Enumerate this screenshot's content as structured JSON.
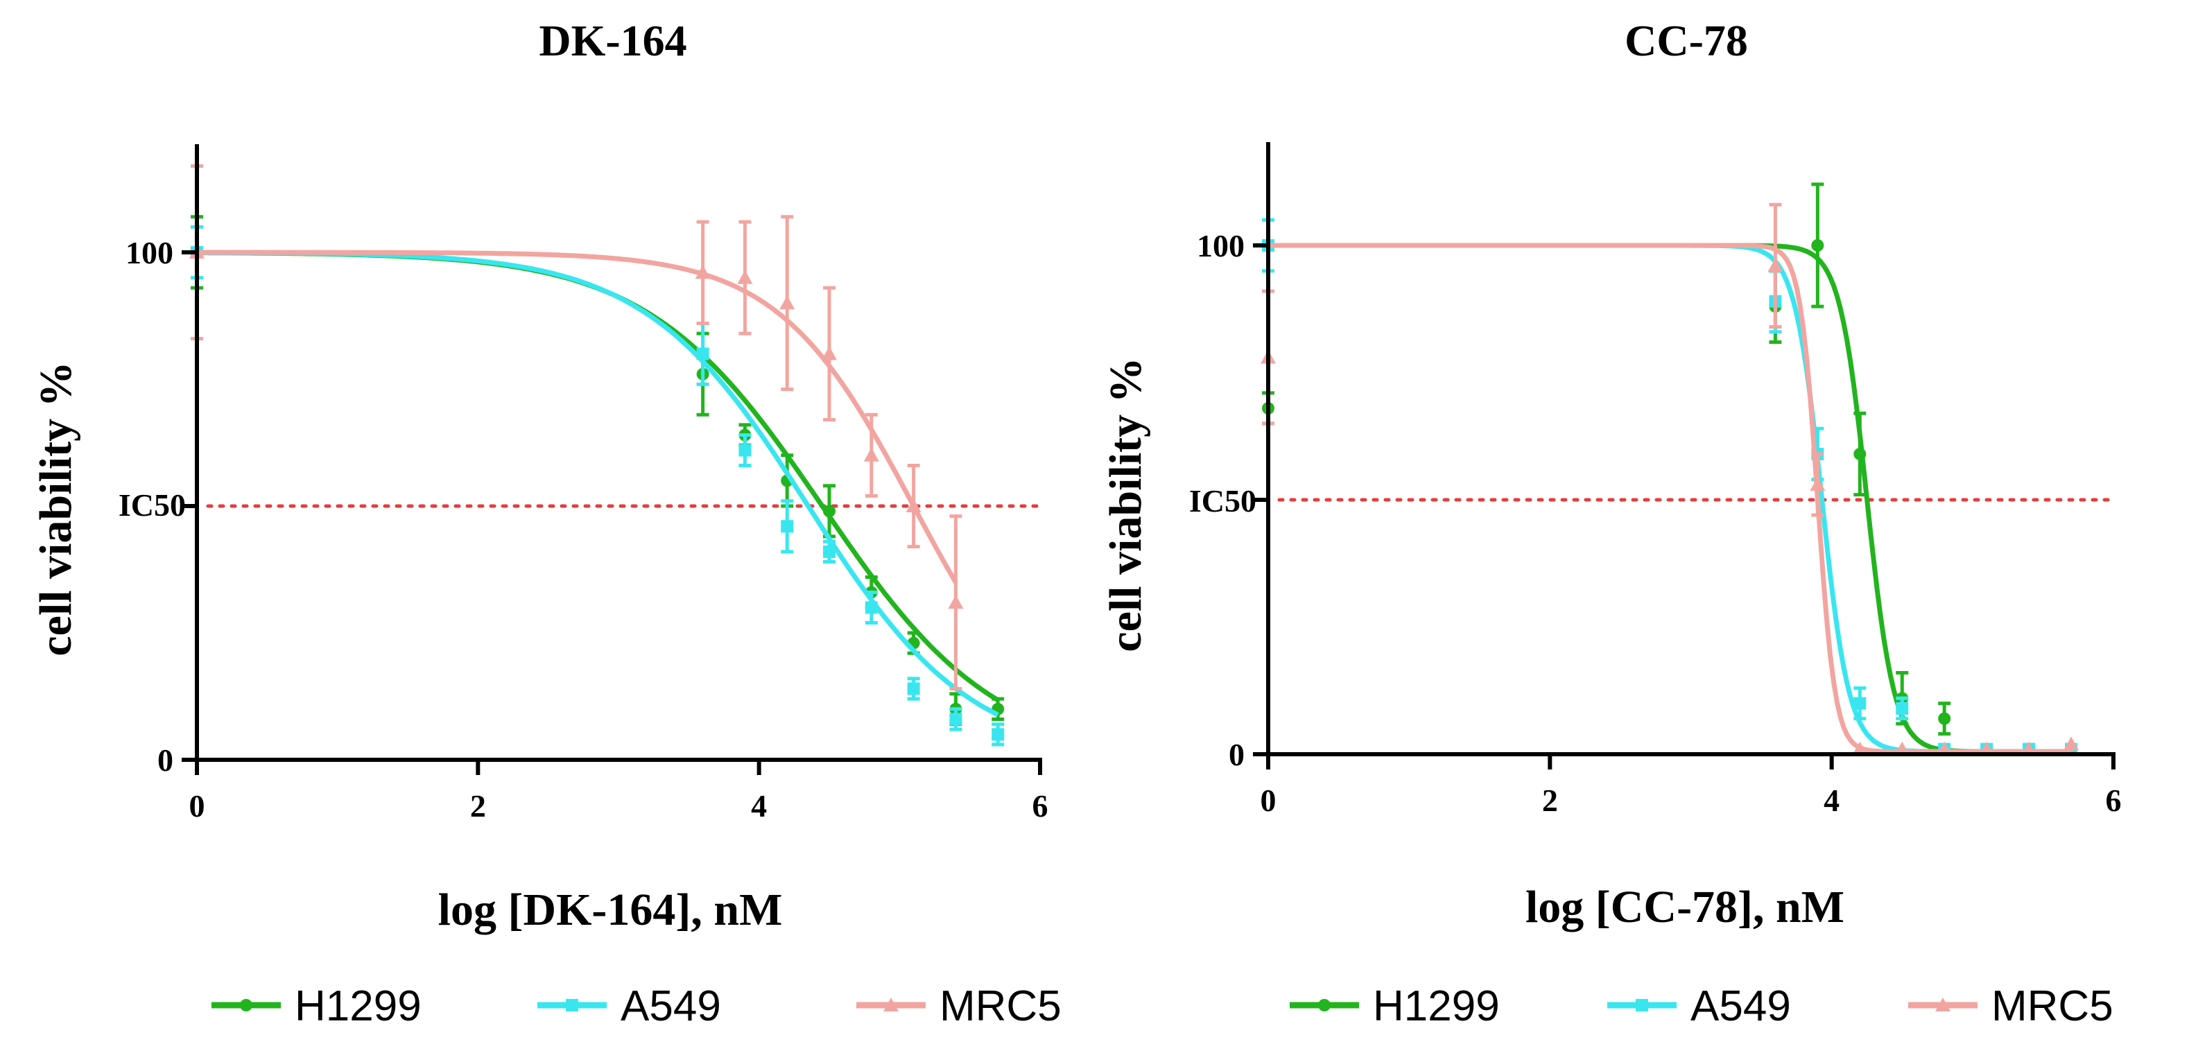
{
  "colors": {
    "H1299": "#22b41e",
    "A549": "#39e6f0",
    "MRC5": "#f2a5a0",
    "ic50_line": "#e63c3c",
    "axis": "#000000"
  },
  "chart_data": [
    {
      "type": "line",
      "title": "DK-164",
      "xlabel": "log [DK-164], nM",
      "ylabel": "cell viability %",
      "xlim": [
        0,
        6
      ],
      "ylim": [
        0,
        120
      ],
      "xticks": [
        "0",
        "2",
        "4",
        "6"
      ],
      "yticks": [
        "0",
        "50",
        "100"
      ],
      "ic50_label": "IC50",
      "ic50_value": 50,
      "series": [
        {
          "name": "H1299",
          "marker": "circle",
          "x": [
            0,
            3.6,
            3.9,
            4.2,
            4.5,
            4.8,
            5.1,
            5.4,
            5.7
          ],
          "y": [
            100,
            76,
            64,
            55,
            49,
            33,
            23,
            10,
            10
          ],
          "err": [
            7,
            8,
            2,
            5,
            5,
            3,
            2,
            3,
            2
          ],
          "fit": {
            "top": 100,
            "bottom": 0,
            "logec50": 4.45,
            "hill": 0.7
          }
        },
        {
          "name": "A549",
          "marker": "square",
          "x": [
            0,
            3.6,
            3.9,
            4.2,
            4.5,
            4.8,
            5.1,
            5.4,
            5.7
          ],
          "y": [
            100,
            80,
            61,
            46,
            41,
            30,
            14,
            8,
            5
          ],
          "err": [
            5,
            6,
            3,
            5,
            2,
            3,
            2,
            2,
            2
          ],
          "fit": {
            "top": 100,
            "bottom": 0,
            "logec50": 4.35,
            "hill": 0.75
          }
        },
        {
          "name": "MRC5",
          "marker": "triangle",
          "x": [
            0,
            3.6,
            3.9,
            4.2,
            4.5,
            4.8,
            5.1,
            5.4
          ],
          "y": [
            100,
            96,
            95,
            90,
            80,
            60,
            50,
            31
          ],
          "err": [
            17,
            10,
            11,
            17,
            13,
            8,
            8,
            17
          ],
          "fit": {
            "top": 100,
            "bottom": 0,
            "logec50": 5.1,
            "hill": 0.9
          }
        }
      ]
    },
    {
      "type": "line",
      "title": "CC-78",
      "xlabel": "log [CC-78], nM",
      "ylabel": "cell viability %",
      "xlim": [
        0,
        6
      ],
      "ylim": [
        0,
        120
      ],
      "xticks": [
        "0",
        "2",
        "4",
        "6"
      ],
      "yticks": [
        "0",
        "50",
        "100"
      ],
      "ic50_label": "IC50",
      "ic50_value": 50,
      "series": [
        {
          "name": "H1299",
          "marker": "circle",
          "x": [
            0,
            3.6,
            3.9,
            4.2,
            4.5,
            4.8,
            5.1,
            5.4,
            5.7
          ],
          "y": [
            68,
            88,
            100,
            59,
            11,
            7,
            1,
            1,
            1
          ],
          "err": [
            3,
            7,
            12,
            8,
            5,
            3,
            0,
            0,
            0
          ],
          "fit": {
            "top": 100,
            "bottom": 0.5,
            "logec50": 4.25,
            "hill": 4.5
          }
        },
        {
          "name": "A549",
          "marker": "square",
          "x": [
            0,
            3.6,
            3.9,
            4.2,
            4.5,
            4.8,
            5.1,
            5.4,
            5.7
          ],
          "y": [
            100,
            89,
            59,
            10,
            9,
            1,
            1,
            1,
            1
          ],
          "err": [
            5,
            6,
            5,
            3,
            2,
            0,
            0,
            0,
            0
          ],
          "fit": {
            "top": 100,
            "bottom": 0.5,
            "logec50": 3.93,
            "hill": 4.5
          }
        },
        {
          "name": "MRC5",
          "marker": "triangle",
          "x": [
            0,
            3.6,
            3.9,
            4.2,
            4.5,
            4.8,
            5.1,
            5.4,
            5.7
          ],
          "y": [
            78,
            96,
            53,
            1,
            1,
            1,
            1,
            1,
            2
          ],
          "err": [
            13,
            12,
            6,
            0,
            0,
            0,
            0,
            0,
            0
          ],
          "fit": {
            "top": 100,
            "bottom": 0.5,
            "logec50": 3.9,
            "hill": 7
          }
        }
      ]
    }
  ]
}
